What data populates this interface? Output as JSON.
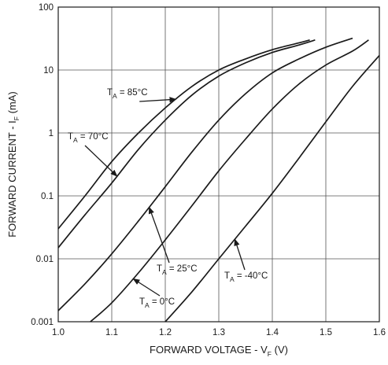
{
  "chart_data": {
    "type": "line",
    "x_axis": {
      "label": "FORWARD VOLTAGE - V",
      "label_sub": "F",
      "label_suffix": " (V)",
      "range": [
        1.0,
        1.6
      ],
      "ticks": [
        "1.0",
        "1.1",
        "1.2",
        "1.3",
        "1.4",
        "1.5",
        "1.6"
      ]
    },
    "y_axis": {
      "label": "FORWARD CURRENT - I",
      "label_sub": "F",
      "label_suffix": " (mA)",
      "scale": "log",
      "range": [
        0.001,
        100
      ],
      "ticks": [
        "0.001",
        "0.01",
        "0.1",
        "1",
        "10",
        "100"
      ]
    },
    "grid": true,
    "series": [
      {
        "name": "T_A = 85°C",
        "x": [
          1.0,
          1.05,
          1.1,
          1.15,
          1.2,
          1.25,
          1.3,
          1.35,
          1.4,
          1.45,
          1.47
        ],
        "y": [
          0.03,
          0.1,
          0.35,
          1.0,
          2.5,
          5.5,
          10,
          15,
          21,
          27,
          30
        ]
      },
      {
        "name": "T_A = 70°C",
        "x": [
          1.0,
          1.05,
          1.1,
          1.15,
          1.2,
          1.25,
          1.3,
          1.35,
          1.4,
          1.45,
          1.48
        ],
        "y": [
          0.015,
          0.05,
          0.16,
          0.55,
          1.6,
          4.0,
          8.0,
          13,
          19,
          25,
          30
        ]
      },
      {
        "name": "T_A = 25°C",
        "x": [
          1.0,
          1.05,
          1.1,
          1.15,
          1.2,
          1.25,
          1.3,
          1.35,
          1.4,
          1.45,
          1.5,
          1.55
        ],
        "y": [
          0.0015,
          0.004,
          0.012,
          0.04,
          0.14,
          0.5,
          1.6,
          4.2,
          9,
          15,
          23,
          32
        ]
      },
      {
        "name": "T_A = 0°C",
        "x": [
          1.06,
          1.1,
          1.15,
          1.2,
          1.25,
          1.3,
          1.35,
          1.4,
          1.45,
          1.5,
          1.55,
          1.58
        ],
        "y": [
          0.001,
          0.002,
          0.006,
          0.02,
          0.07,
          0.25,
          0.8,
          2.4,
          6,
          12,
          20,
          30
        ]
      },
      {
        "name": "T_A = -40°C",
        "x": [
          1.2,
          1.25,
          1.3,
          1.35,
          1.4,
          1.45,
          1.5,
          1.55,
          1.6
        ],
        "y": [
          0.001,
          0.003,
          0.01,
          0.033,
          0.11,
          0.4,
          1.5,
          5.5,
          17
        ]
      }
    ],
    "annotations": [
      {
        "text": "T",
        "sub": "A",
        "rest": " = 85°C",
        "series": 0,
        "at_x": 1.22
      },
      {
        "text": "T",
        "sub": "A",
        "rest": " = 70°C",
        "series": 1,
        "at_x": 1.11
      },
      {
        "text": "T",
        "sub": "A",
        "rest": " = 25°C",
        "series": 2,
        "at_x": 1.17
      },
      {
        "text": "T",
        "sub": "A",
        "rest": " = 0°C",
        "series": 3,
        "at_x": 1.14
      },
      {
        "text": "T",
        "sub": "A",
        "rest": " = -40°C",
        "series": 4,
        "at_x": 1.33
      }
    ]
  }
}
